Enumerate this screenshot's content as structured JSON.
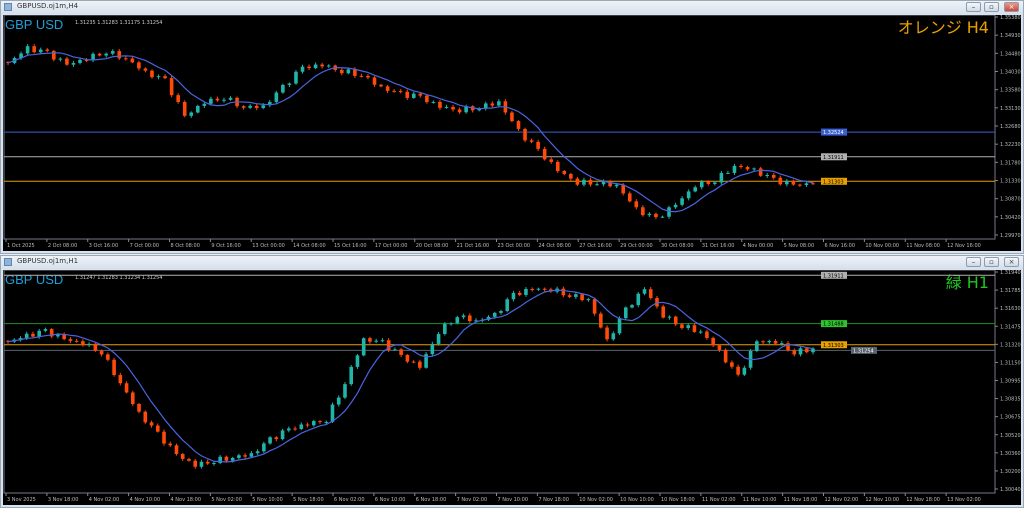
{
  "windows": [
    {
      "title": "GBPUSD.oj1m,H4",
      "symbol_label": "GBP USD",
      "ohlc_text": "1.31235 1.31283 1.31175 1.31254",
      "tag": "オレンジ H4",
      "tag_color": "#e8a000",
      "buttons": [
        "minimize",
        "restore",
        "close"
      ],
      "chart_data": {
        "type": "candlestick",
        "ylim": [
          1.2997,
          1.3538
        ],
        "y_ticks": [
          "1.35380",
          "1.34930",
          "1.34480",
          "1.34030",
          "1.33580",
          "1.33130",
          "1.32680",
          "1.32230",
          "1.31780",
          "1.31330",
          "1.30870",
          "1.30420",
          "1.29970"
        ],
        "x_ticks": [
          "1 Oct 2025",
          "2 Oct 08:00",
          "3 Oct 16:00",
          "7 Oct 00:00",
          "8 Oct 08:00",
          "9 Oct 16:00",
          "13 Oct 00:00",
          "14 Oct 08:00",
          "15 Oct 16:00",
          "17 Oct 00:00",
          "20 Oct 08:00",
          "21 Oct 16:00",
          "23 Oct 00:00",
          "24 Oct 08:00",
          "27 Oct 16:00",
          "29 Oct 00:00",
          "30 Oct 08:00",
          "31 Oct 16:00",
          "4 Nov 00:00",
          "5 Nov 08:00",
          "6 Nov 16:00",
          "10 Nov 00:00",
          "11 Nov 08:00",
          "12 Nov 16:00"
        ],
        "closes": [
          1.3424,
          1.346,
          1.3448,
          1.3419,
          1.3436,
          1.3453,
          1.3436,
          1.34,
          1.338,
          1.3291,
          1.3327,
          1.3339,
          1.3315,
          1.3315,
          1.3363,
          1.3412,
          1.3419,
          1.3405,
          1.3395,
          1.3363,
          1.3346,
          1.3339,
          1.3315,
          1.3308,
          1.3315,
          1.3327,
          1.3254,
          1.3206,
          1.3157,
          1.3128,
          1.3128,
          1.3121,
          1.306,
          1.3036,
          1.3072,
          1.3121,
          1.3133,
          1.3169,
          1.3157,
          1.3133,
          1.3121,
          1.3125
        ],
        "levels": [
          {
            "price": 1.32524,
            "label": "1.32524",
            "color": "#3a5fd0",
            "text_color": "#ffffff"
          },
          {
            "price": 1.31911,
            "label": "1.31911",
            "color": "#b0b0b0",
            "text_color": "#000000"
          },
          {
            "price": 1.31303,
            "label": "1.31303",
            "color": "#e8a000",
            "text_color": "#000000"
          }
        ],
        "bull_color": "#1fb5a8",
        "bear_color": "#ff4a0a",
        "ma_color": "#4a64e0"
      }
    },
    {
      "title": "GBPUSD.oj1m,H1",
      "symbol_label": "GBP USD",
      "ohlc_text": "1.31247 1.31283 1.31234 1.31254",
      "tag": "緑 H1",
      "tag_color": "#22c422",
      "buttons": [
        "minimize",
        "restore",
        "close"
      ],
      "chart_data": {
        "type": "candlestick",
        "ylim": [
          1.3004,
          1.3194
        ],
        "y_ticks": [
          "1.31940",
          "1.31785",
          "1.31630",
          "1.31475",
          "1.31320",
          "1.31150",
          "1.30995",
          "1.30835",
          "1.30675",
          "1.30520",
          "1.30360",
          "1.30200",
          "1.30040"
        ],
        "x_ticks": [
          "3 Nov 2025",
          "3 Nov 18:00",
          "4 Nov 02:00",
          "4 Nov 10:00",
          "4 Nov 18:00",
          "5 Nov 02:00",
          "5 Nov 10:00",
          "5 Nov 18:00",
          "6 Nov 02:00",
          "6 Nov 10:00",
          "6 Nov 18:00",
          "7 Nov 02:00",
          "7 Nov 10:00",
          "7 Nov 18:00",
          "10 Nov 02:00",
          "10 Nov 10:00",
          "10 Nov 18:00",
          "11 Nov 02:00",
          "11 Nov 10:00",
          "11 Nov 18:00",
          "12 Nov 02:00",
          "12 Nov 10:00",
          "12 Nov 18:00",
          "13 Nov 02:00"
        ],
        "closes": [
          1.3133,
          1.3138,
          1.3142,
          1.3135,
          1.3132,
          1.3124,
          1.3097,
          1.307,
          1.3052,
          1.3034,
          1.3025,
          1.3029,
          1.3032,
          1.3034,
          1.3047,
          1.3056,
          1.3061,
          1.3065,
          1.3097,
          1.3135,
          1.3132,
          1.312,
          1.3111,
          1.3142,
          1.3156,
          1.3151,
          1.3156,
          1.3174,
          1.3179,
          1.3179,
          1.3174,
          1.317,
          1.3133,
          1.3161,
          1.3179,
          1.3156,
          1.3147,
          1.3142,
          1.3124,
          1.3102,
          1.3133,
          1.3133,
          1.3124,
          1.3127
        ],
        "levels": [
          {
            "price": 1.31911,
            "label": "1.31911",
            "color": "#b0b0b0",
            "text_color": "#000000"
          },
          {
            "price": 1.31488,
            "label": "1.31488",
            "color": "#1f8f1f",
            "text_color": "#000000",
            "badge": "#2fc42f"
          },
          {
            "price": 1.31303,
            "label": "1.31303",
            "color": "#e8a000",
            "text_color": "#000000"
          },
          {
            "price": 1.31254,
            "label": "1.31254",
            "color": "#5a6470",
            "text_color": "#ffffff"
          }
        ],
        "bull_color": "#1fb5a8",
        "bear_color": "#ff4a0a",
        "ma_color": "#4a64e0"
      }
    }
  ]
}
